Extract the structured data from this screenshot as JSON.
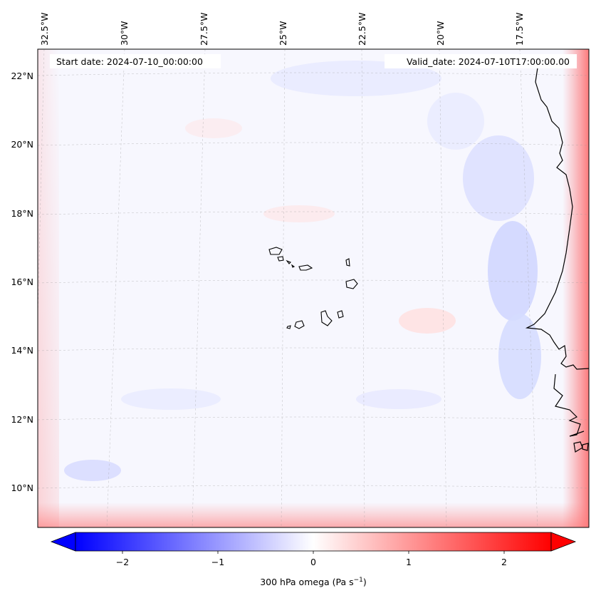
{
  "header": {
    "start_date": "Start date: 2024-07-10_00:00:00",
    "valid_date": "Valid_date: 2024-07-10T17:00:00.00"
  },
  "map": {
    "longitude_labels": [
      "32.5°W",
      "30°W",
      "27.5°W",
      "25°W",
      "22.5°W",
      "20°W",
      "17.5°W"
    ],
    "latitude_labels": [
      "22°N",
      "20°N",
      "18°N",
      "16°N",
      "14°N",
      "12°N",
      "10°N"
    ],
    "field": "300 hPa omega",
    "gridlines": true,
    "colors": {
      "negative": "#0000ff",
      "zero": "#ffffff",
      "positive": "#ff0000",
      "coastline": "#000000"
    }
  },
  "colorbar": {
    "label": "300 hPa omega (Pa s",
    "label_unit_exponent": "−1",
    "label_close": ")",
    "ticks": [
      "−2",
      "−1",
      "0",
      "1",
      "2"
    ],
    "range": [
      -2.75,
      2.75
    ],
    "extend": "both"
  }
}
